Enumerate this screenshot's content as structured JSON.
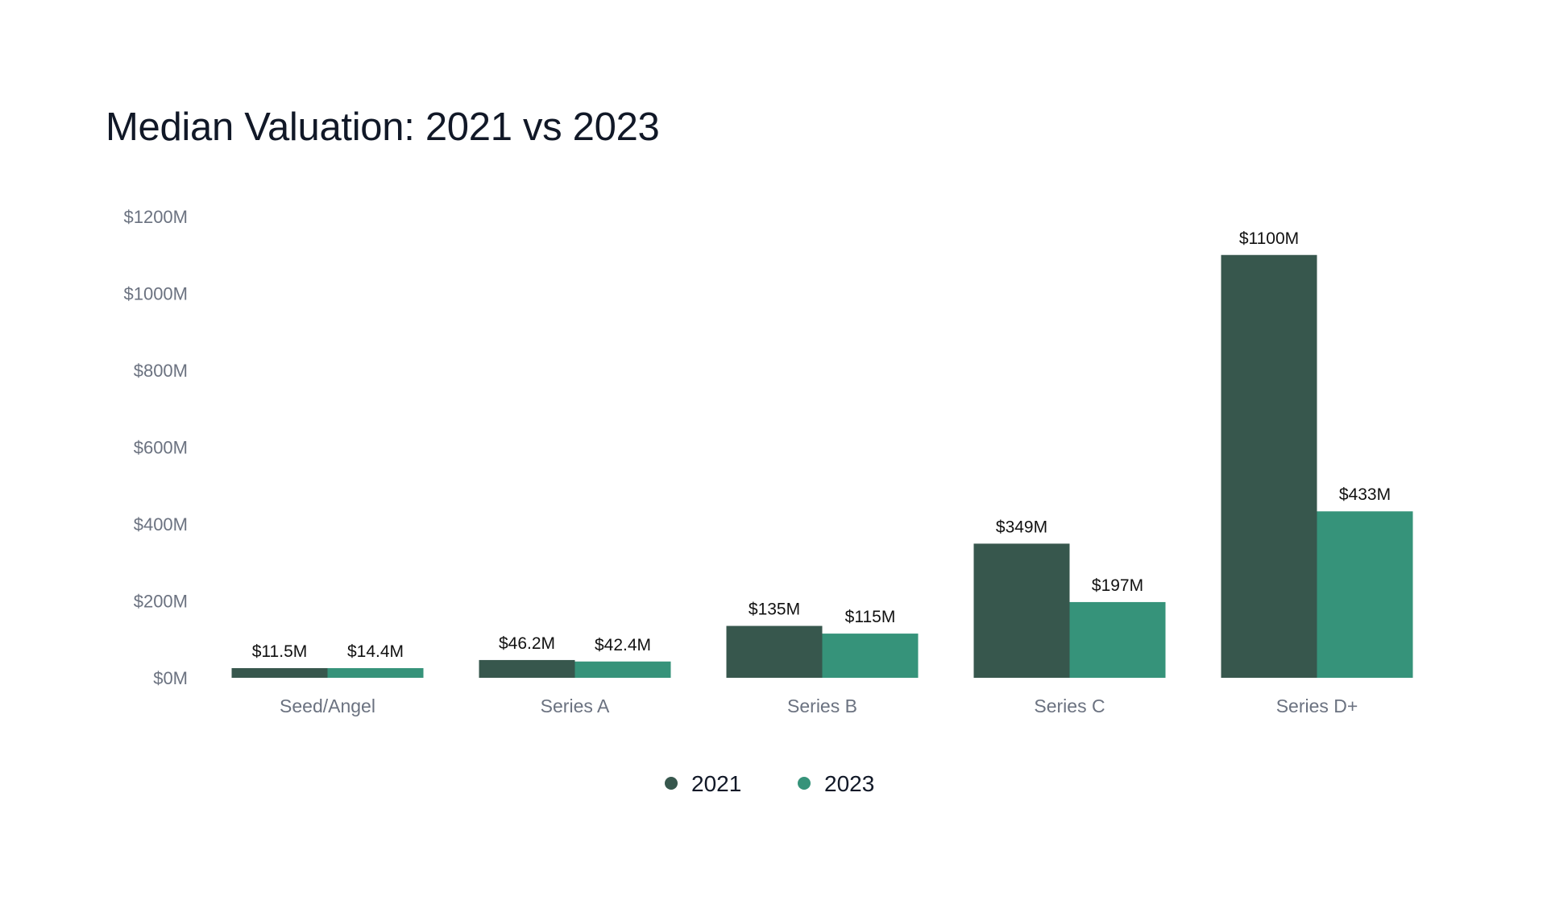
{
  "chart_data": {
    "type": "bar",
    "title": "Median Valuation: 2021 vs 2023",
    "xlabel": "",
    "ylabel": "",
    "categories": [
      "Seed/Angel",
      "Series A",
      "Series B",
      "Series C",
      "Series D+"
    ],
    "series": [
      {
        "name": "2021",
        "color": "#37574d",
        "values": [
          11.5,
          46.2,
          135,
          349,
          1100
        ],
        "labels": [
          "$11.5M",
          "$46.2M",
          "$135M",
          "$349M",
          "$1100M"
        ]
      },
      {
        "name": "2023",
        "color": "#36937a",
        "values": [
          14.4,
          42.4,
          115,
          197,
          433
        ],
        "labels": [
          "$14.4M",
          "$42.4M",
          "$115M",
          "$197M",
          "$433M"
        ]
      }
    ],
    "ylim": [
      0,
      1200
    ],
    "yticks": [
      0,
      200,
      400,
      600,
      800,
      1000,
      1200
    ],
    "ytick_labels": [
      "$0M",
      "$200M",
      "$400M",
      "$600M",
      "$800M",
      "$1000M",
      "$1200M"
    ],
    "grid": false,
    "legend_position": "bottom-center"
  }
}
